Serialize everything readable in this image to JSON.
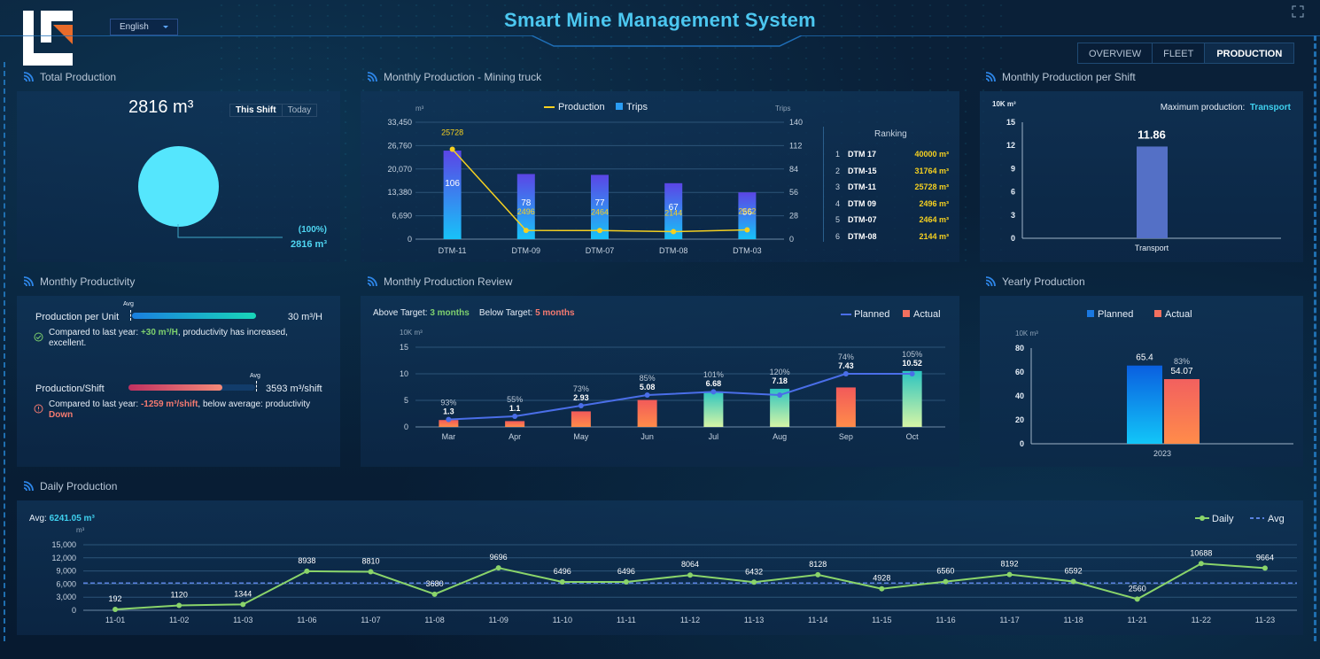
{
  "header": {
    "title": "Smart Mine Management System",
    "language": "English"
  },
  "nav": {
    "tabs": [
      {
        "label": "OVERVIEW",
        "active": false
      },
      {
        "label": "FLEET",
        "active": false
      },
      {
        "label": "PRODUCTION",
        "active": true
      }
    ]
  },
  "total_production": {
    "title": "Total Production",
    "value": "2816 m³",
    "toggle": [
      "This Shift",
      "Today"
    ],
    "active_toggle": "This Shift",
    "pie_percent": "(100%)",
    "pie_value": "2816 m³",
    "color": "#55e6fd"
  },
  "monthly_truck": {
    "title": "Monthly Production - Mining truck",
    "legend_production": "Production",
    "legend_trips": "Trips",
    "ranking_title": "Ranking",
    "ranking": [
      {
        "rank": "1",
        "name": "DTM 17",
        "value": "40000 m³"
      },
      {
        "rank": "2",
        "name": "DTM-15",
        "value": "31764 m³"
      },
      {
        "rank": "3",
        "name": "DTM-11",
        "value": "25728 m³"
      },
      {
        "rank": "4",
        "name": "DTM 09",
        "value": "2496 m³"
      },
      {
        "rank": "5",
        "name": "DTM-07",
        "value": "2464 m³"
      },
      {
        "rank": "6",
        "name": "DTM-08",
        "value": "2144 m³"
      }
    ]
  },
  "per_shift": {
    "title": "Monthly Production per Shift",
    "max_label": "Maximum production:",
    "max_value": "Transport"
  },
  "productivity": {
    "title": "Monthly Productivity",
    "row1_label": "Production per Unit",
    "row1_value": "30 m³/H",
    "row1_avg": "Avg",
    "row1_fill": 1.0,
    "row1_note_pre": "Compared to last year: ",
    "row1_note_val": "+30 m³/H",
    "row1_note_post": ", productivity has increased, excellent.",
    "row2_label": "Production/Shift",
    "row2_value": "3593 m³/shift",
    "row2_avg": "Avg",
    "row2_fill": 0.74,
    "row2_note_pre": "Compared to last year: ",
    "row2_note_val": "-1259 m³/shift",
    "row2_note_post": ", below average: productivity ",
    "row2_note_tail": "Down"
  },
  "review": {
    "title": "Monthly Production Review",
    "above_label": "Above Target:",
    "above_value": "3 months",
    "below_label": "Below Target:",
    "below_value": "5 months",
    "legend_planned": "Planned",
    "legend_actual": "Actual"
  },
  "yearly": {
    "title": "Yearly Production",
    "legend_planned": "Planned",
    "legend_actual": "Actual"
  },
  "daily": {
    "title": "Daily Production",
    "avg_label": "Avg:",
    "avg_value": "6241.05 m³",
    "legend_daily": "Daily",
    "legend_avg": "Avg"
  },
  "chart_data": [
    {
      "id": "truck",
      "type": "bar",
      "title": "Monthly Production - Mining truck",
      "categories": [
        "DTM-11",
        "DTM-09",
        "DTM-07",
        "DTM-08",
        "DTM-03"
      ],
      "series": [
        {
          "name": "Trips",
          "axis": "right",
          "values": [
            106,
            78,
            77,
            67,
            56
          ]
        },
        {
          "name": "Production",
          "axis": "left",
          "type": "line",
          "values": [
            25728,
            2496,
            2464,
            2144,
            2662
          ]
        }
      ],
      "ylabel_left": "m³",
      "ylabel_right": "Trips",
      "ylim_left": [
        0,
        33450
      ],
      "yticks_left": [
        "0",
        "6,690",
        "13,380",
        "20,070",
        "26,760",
        "33,450"
      ],
      "ylim_right": [
        0,
        140
      ],
      "yticks_right": [
        "0",
        "28",
        "56",
        "84",
        "112",
        "140"
      ]
    },
    {
      "id": "shift",
      "type": "bar",
      "categories": [
        "Transport"
      ],
      "values": [
        11.86
      ],
      "ylabel": "10K m³",
      "ylim": [
        0,
        15
      ],
      "yticks": [
        "0",
        "3",
        "6",
        "9",
        "12",
        "15"
      ]
    },
    {
      "id": "review",
      "type": "bar",
      "categories": [
        "Mar",
        "Apr",
        "May",
        "Jun",
        "Jul",
        "Aug",
        "Sep",
        "Oct"
      ],
      "series": [
        {
          "name": "Actual",
          "values": [
            1.3,
            1.1,
            2.93,
            5.08,
            6.68,
            7.18,
            7.43,
            10.52
          ]
        },
        {
          "name": "Planned",
          "type": "line",
          "values": [
            1.4,
            2.0,
            4.0,
            6.0,
            6.6,
            6.0,
            10.0,
            10.0
          ]
        }
      ],
      "percent_labels": [
        "93%",
        "55%",
        "73%",
        "85%",
        "101%",
        "120%",
        "74%",
        "105%"
      ],
      "above_target": [
        false,
        false,
        false,
        false,
        true,
        true,
        false,
        true
      ],
      "ylabel": "10K m³",
      "ylim": [
        0,
        15
      ],
      "yticks": [
        "0",
        "5",
        "10",
        "15"
      ]
    },
    {
      "id": "yearly",
      "type": "bar",
      "categories": [
        "2023"
      ],
      "series": [
        {
          "name": "Planned",
          "values": [
            65.4
          ]
        },
        {
          "name": "Actual",
          "values": [
            54.07
          ]
        }
      ],
      "percent_label": "83%",
      "ylabel": "10K m³",
      "ylim": [
        0,
        80
      ],
      "yticks": [
        "0",
        "20",
        "40",
        "60",
        "80"
      ]
    },
    {
      "id": "daily",
      "type": "line",
      "categories": [
        "11-01",
        "11-02",
        "11-03",
        "11-06",
        "11-07",
        "11-08",
        "11-09",
        "11-10",
        "11-11",
        "11-12",
        "11-13",
        "11-14",
        "11-15",
        "11-16",
        "11-17",
        "11-18",
        "11-21",
        "11-22",
        "11-23"
      ],
      "series": [
        {
          "name": "Daily",
          "values": [
            192,
            1120,
            1344,
            8938,
            8810,
            3680,
            9696,
            6496,
            6496,
            8064,
            6432,
            8128,
            4928,
            6560,
            8192,
            6592,
            2560,
            10688,
            9664
          ]
        }
      ],
      "avg": 6241.05,
      "ylabel": "m³",
      "ylim": [
        0,
        15000
      ],
      "yticks": [
        "0",
        "3,000",
        "6,000",
        "9,000",
        "12,000",
        "15,000"
      ]
    }
  ]
}
